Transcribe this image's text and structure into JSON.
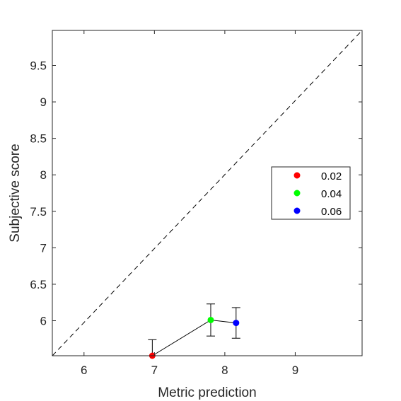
{
  "chart_data": {
    "type": "scatter",
    "xlabel": "Metric prediction",
    "ylabel": "Subjective score",
    "xlim": [
      5.55,
      9.95
    ],
    "ylim": [
      5.52,
      9.98
    ],
    "xticks": [
      "6",
      "7",
      "8",
      "9"
    ],
    "yticks": [
      "6",
      "6.5",
      "7",
      "7.5",
      "8",
      "8.5",
      "9",
      "9.5"
    ],
    "grid": false,
    "box": true,
    "legend_position": "right",
    "reference_line": {
      "style": "dashed",
      "color": "#000000",
      "from": [
        5.55,
        5.52
      ],
      "to": [
        9.95,
        9.98
      ]
    },
    "connect_points": true,
    "series": [
      {
        "name": "0.02",
        "color": "#ff0000",
        "x": 6.97,
        "y": 5.52,
        "err_low": 5.52,
        "err_high": 5.74
      },
      {
        "name": "0.04",
        "color": "#00ff00",
        "x": 7.8,
        "y": 6.01,
        "err_low": 5.79,
        "err_high": 6.23
      },
      {
        "name": "0.06",
        "color": "#0000ff",
        "x": 8.16,
        "y": 5.97,
        "err_low": 5.76,
        "err_high": 6.18
      }
    ]
  }
}
